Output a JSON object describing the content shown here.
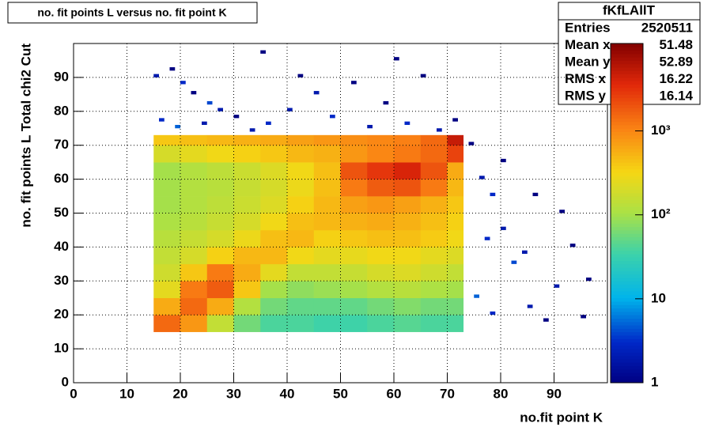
{
  "chart_data": {
    "type": "heatmap",
    "title": "no. fit points L versus no. fit point K",
    "xlabel": "no.fit point K",
    "ylabel": "no. fit points  L  Total chi2 Cut",
    "xlim": [
      0,
      100
    ],
    "ylim": [
      0,
      100
    ],
    "xticks": [
      0,
      10,
      20,
      30,
      40,
      50,
      60,
      70,
      80,
      90
    ],
    "yticks": [
      0,
      10,
      20,
      30,
      40,
      50,
      60,
      70,
      80,
      90
    ],
    "grid": true,
    "log_z": true,
    "zlim": [
      1,
      11000
    ],
    "zticks": [
      1,
      10,
      {
        "value": 100,
        "label": "10²"
      },
      {
        "value": 1000,
        "label": "10³"
      }
    ],
    "xbins": [
      15,
      20,
      25,
      30,
      35,
      40,
      45,
      50,
      55,
      60,
      65,
      70,
      73
    ],
    "ybins": [
      15,
      20,
      25,
      30,
      35,
      40,
      45,
      50,
      55,
      60,
      65,
      70,
      73
    ],
    "z": [
      [
        1500,
        800,
        150,
        60,
        40,
        40,
        35,
        35,
        40,
        45,
        40,
        40
      ],
      [
        600,
        1500,
        600,
        120,
        60,
        50,
        50,
        50,
        60,
        70,
        60,
        60
      ],
      [
        250,
        1200,
        1800,
        400,
        100,
        80,
        90,
        100,
        120,
        130,
        110,
        100
      ],
      [
        180,
        400,
        1200,
        600,
        250,
        150,
        150,
        160,
        200,
        220,
        180,
        150
      ],
      [
        150,
        200,
        350,
        500,
        500,
        300,
        250,
        260,
        300,
        300,
        250,
        220
      ],
      [
        130,
        160,
        200,
        280,
        450,
        500,
        350,
        400,
        450,
        450,
        380,
        300
      ],
      [
        110,
        130,
        160,
        200,
        300,
        450,
        500,
        550,
        600,
        550,
        450,
        350
      ],
      [
        100,
        120,
        140,
        170,
        220,
        350,
        500,
        700,
        800,
        700,
        550,
        400
      ],
      [
        100,
        120,
        130,
        160,
        200,
        280,
        450,
        1200,
        1800,
        2000,
        1200,
        500
      ],
      [
        100,
        120,
        140,
        170,
        220,
        300,
        450,
        2000,
        3000,
        4000,
        2000,
        600
      ],
      [
        200,
        250,
        300,
        350,
        400,
        500,
        550,
        800,
        1000,
        1200,
        1500,
        2500
      ],
      [
        400,
        450,
        500,
        550,
        600,
        700,
        800,
        900,
        1000,
        1100,
        1500,
        5000
      ]
    ],
    "sparse": {
      "x": [
        15,
        18,
        20,
        22,
        25,
        27,
        16,
        19,
        24,
        30,
        33,
        36,
        40,
        42,
        45,
        48,
        52,
        55,
        58,
        62,
        65,
        68,
        71,
        60,
        35,
        74,
        76,
        78,
        80,
        82,
        75,
        78,
        85,
        88,
        90,
        93,
        95,
        86,
        80,
        96,
        91,
        84,
        77
      ],
      "y": [
        90,
        92,
        88,
        85,
        82,
        80,
        77,
        75,
        76,
        78,
        74,
        76,
        80,
        90,
        85,
        78,
        88,
        75,
        82,
        76,
        90,
        74,
        77,
        95,
        97,
        70,
        60,
        55,
        45,
        35,
        25,
        20,
        22,
        18,
        28,
        40,
        19,
        55,
        65,
        30,
        50,
        38,
        42
      ],
      "values": [
        2,
        1,
        3,
        1,
        4,
        2,
        3,
        5,
        2,
        1,
        2,
        3,
        2,
        1,
        2,
        3,
        1,
        2,
        1,
        3,
        1,
        2,
        1,
        1,
        1,
        1,
        2,
        3,
        2,
        4,
        5,
        3,
        2,
        1,
        2,
        1,
        1,
        1,
        1,
        1,
        1,
        2,
        3
      ]
    },
    "stats": {
      "title": "fKfLAllT",
      "labels": [
        "Entries",
        "Mean x",
        "Mean y",
        "RMS x",
        "RMS y"
      ],
      "values": [
        2520511,
        51.48,
        52.89,
        16.22,
        16.14
      ]
    }
  }
}
